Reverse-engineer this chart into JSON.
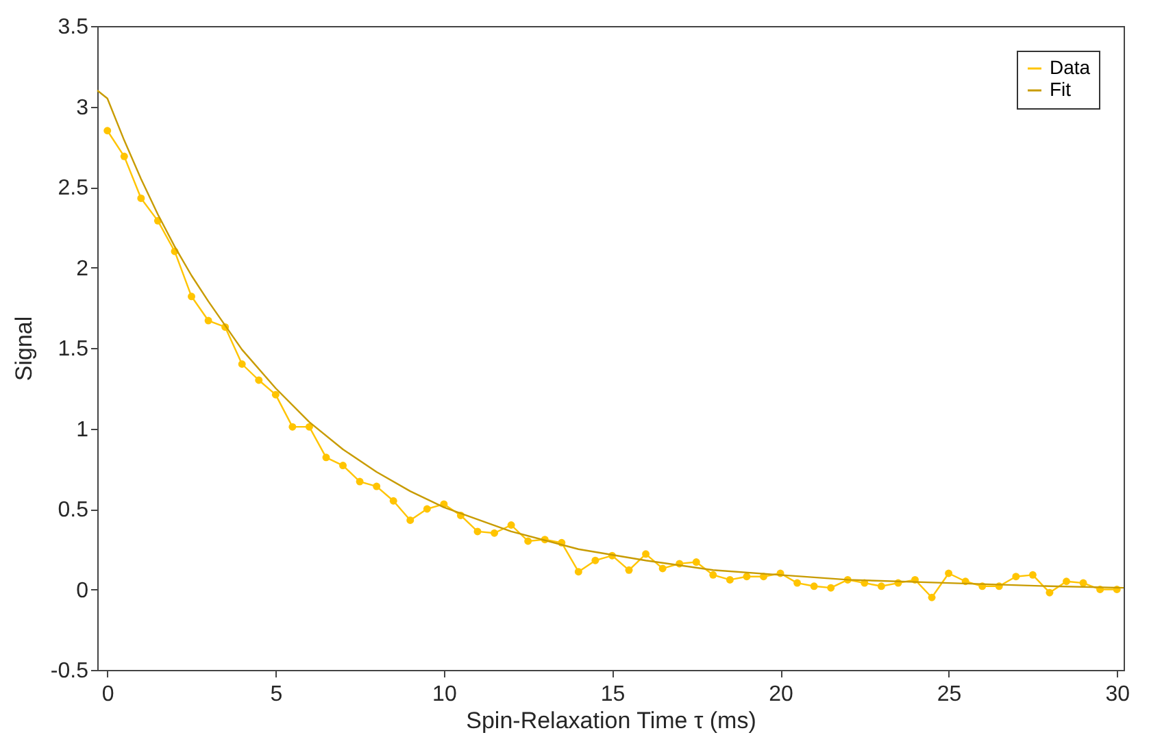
{
  "chart_data": {
    "type": "line",
    "xlabel": "Spin-Relaxation Time τ (ms)",
    "ylabel": "Signal",
    "xlim": [
      -0.3,
      30.2
    ],
    "ylim": [
      -0.5,
      3.5
    ],
    "xticks": [
      0,
      5,
      10,
      15,
      20,
      25,
      30
    ],
    "yticks": [
      -0.5,
      0,
      0.5,
      1,
      1.5,
      2,
      2.5,
      3,
      3.5
    ],
    "grid": false,
    "legend": "top right",
    "line_style": "solid",
    "series": [
      {
        "name": "Data",
        "color": "#ffc400",
        "marker": "circle",
        "x": [
          0,
          0.5,
          1,
          1.5,
          2,
          2.5,
          3,
          3.5,
          4,
          4.5,
          5,
          5.5,
          6,
          6.5,
          7,
          7.5,
          8,
          8.5,
          9,
          9.5,
          10,
          10.5,
          11,
          11.5,
          12,
          12.5,
          13,
          13.5,
          14,
          14.5,
          15,
          15.5,
          16,
          16.5,
          17,
          17.5,
          18,
          18.5,
          19,
          19.5,
          20,
          20.5,
          21,
          21.5,
          22,
          22.5,
          23,
          23.5,
          24,
          24.5,
          25,
          25.5,
          26,
          26.5,
          27,
          27.5,
          28,
          28.5,
          29,
          29.5,
          30
        ],
        "values": [
          2.85,
          2.69,
          2.43,
          2.29,
          2.1,
          1.82,
          1.67,
          1.63,
          1.4,
          1.3,
          1.21,
          1.01,
          1.01,
          0.82,
          0.77,
          0.67,
          0.64,
          0.55,
          0.43,
          0.5,
          0.53,
          0.46,
          0.36,
          0.35,
          0.4,
          0.3,
          0.31,
          0.29,
          0.11,
          0.18,
          0.21,
          0.12,
          0.22,
          0.13,
          0.16,
          0.17,
          0.09,
          0.06,
          0.08,
          0.08,
          0.1,
          0.04,
          0.02,
          0.01,
          0.06,
          0.04,
          0.02,
          0.04,
          0.06,
          -0.05,
          0.1,
          0.05,
          0.02,
          0.02,
          0.08,
          0.09,
          -0.02,
          0.05,
          0.04,
          0,
          0
        ]
      },
      {
        "name": "Fit",
        "color": "#c89b00",
        "marker": "none",
        "x": [
          -0.3,
          0,
          0.5,
          1,
          1.5,
          2,
          2.5,
          3,
          4,
          5,
          6,
          7,
          8,
          9,
          10,
          12,
          14,
          16,
          18,
          20,
          22,
          25,
          28,
          30.2
        ],
        "values": [
          3.1,
          3.05,
          2.79,
          2.55,
          2.33,
          2.13,
          1.95,
          1.79,
          1.49,
          1.25,
          1.04,
          0.87,
          0.73,
          0.61,
          0.51,
          0.36,
          0.25,
          0.18,
          0.12,
          0.09,
          0.06,
          0.04,
          0.02,
          0.01
        ]
      }
    ]
  }
}
